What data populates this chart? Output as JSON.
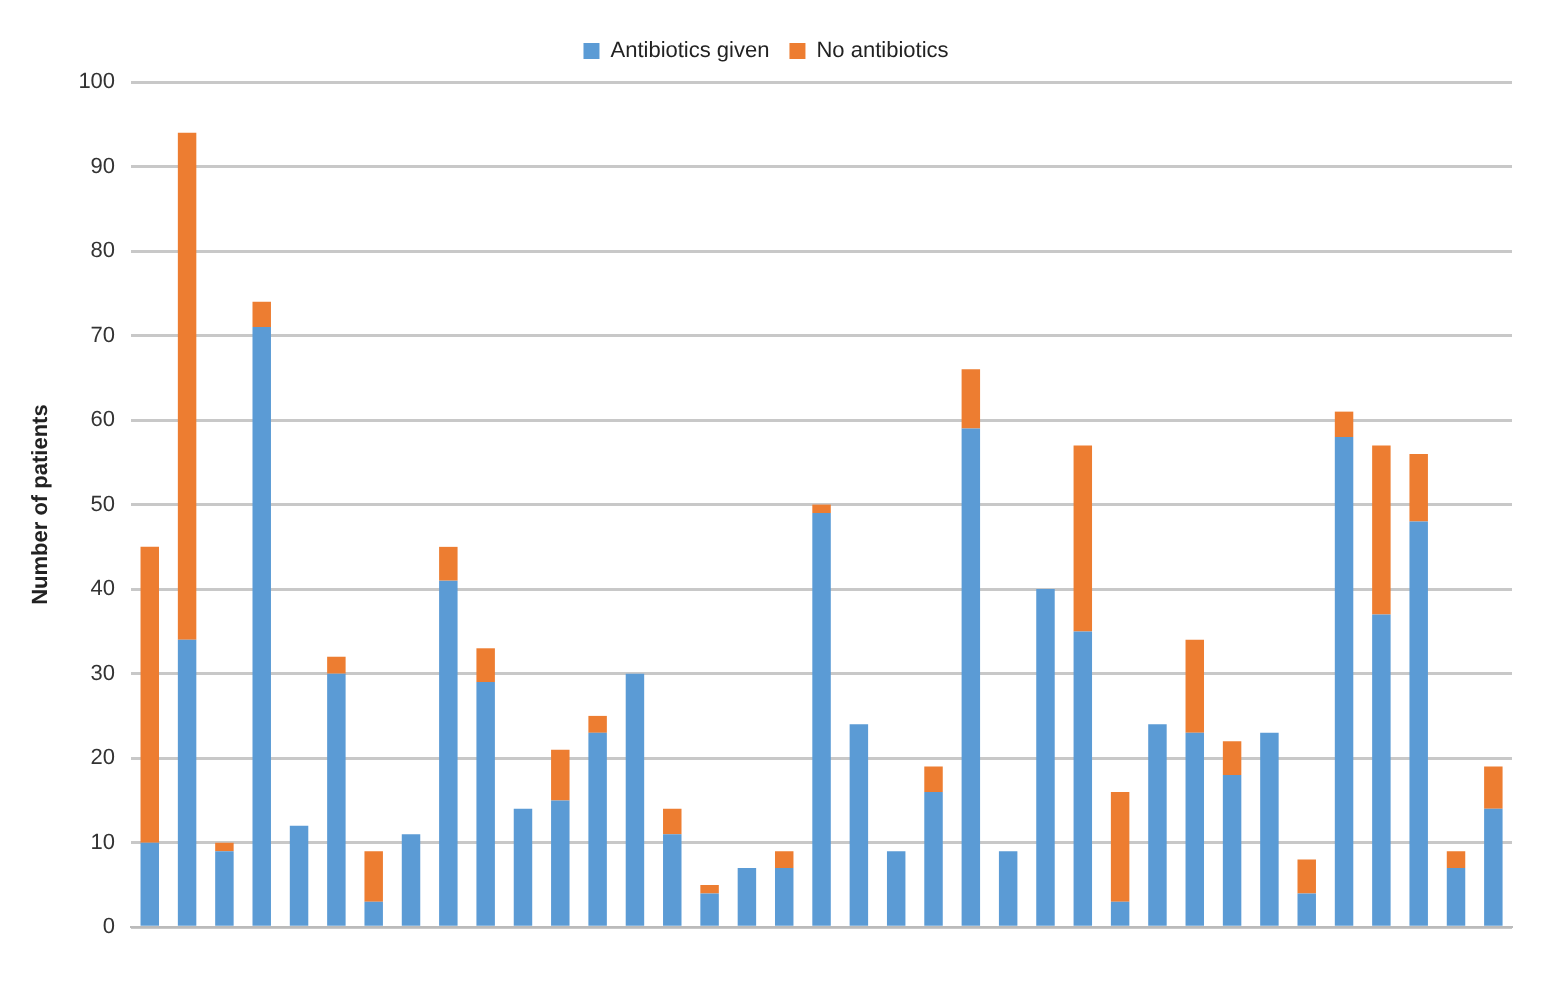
{
  "chart_data": {
    "type": "bar",
    "stacked": true,
    "ylabel": "Number of patients",
    "categories": [
      null,
      null,
      null,
      null,
      null,
      null,
      null,
      null,
      null,
      null,
      null,
      null,
      null,
      null,
      null,
      null,
      null,
      null,
      null,
      null,
      null,
      null,
      null,
      null,
      null,
      null,
      null,
      null,
      null,
      null,
      null,
      null,
      null,
      null,
      null,
      null,
      null
    ],
    "series": [
      {
        "name": "Antibiotics given",
        "color": "#5b9bd5",
        "values": [
          10,
          34,
          9,
          71,
          12,
          30,
          3,
          11,
          41,
          29,
          14,
          15,
          23,
          30,
          11,
          4,
          7,
          7,
          49,
          24,
          9,
          16,
          59,
          9,
          40,
          35,
          3,
          24,
          23,
          18,
          23,
          4,
          58,
          37,
          48,
          7,
          14
        ]
      },
      {
        "name": "No antibiotics",
        "color": "#ed7d31",
        "values": [
          35,
          60,
          1,
          3,
          0,
          2,
          6,
          0,
          4,
          4,
          0,
          6,
          2,
          0,
          3,
          1,
          0,
          2,
          1,
          0,
          0,
          3,
          7,
          0,
          0,
          22,
          13,
          0,
          11,
          4,
          0,
          4,
          3,
          20,
          8,
          2,
          5
        ]
      }
    ],
    "ylim": [
      0,
      100
    ],
    "yticks": [
      0,
      10,
      20,
      30,
      40,
      50,
      60,
      70,
      80,
      90,
      100
    ],
    "grid": "y",
    "legend": "top"
  }
}
